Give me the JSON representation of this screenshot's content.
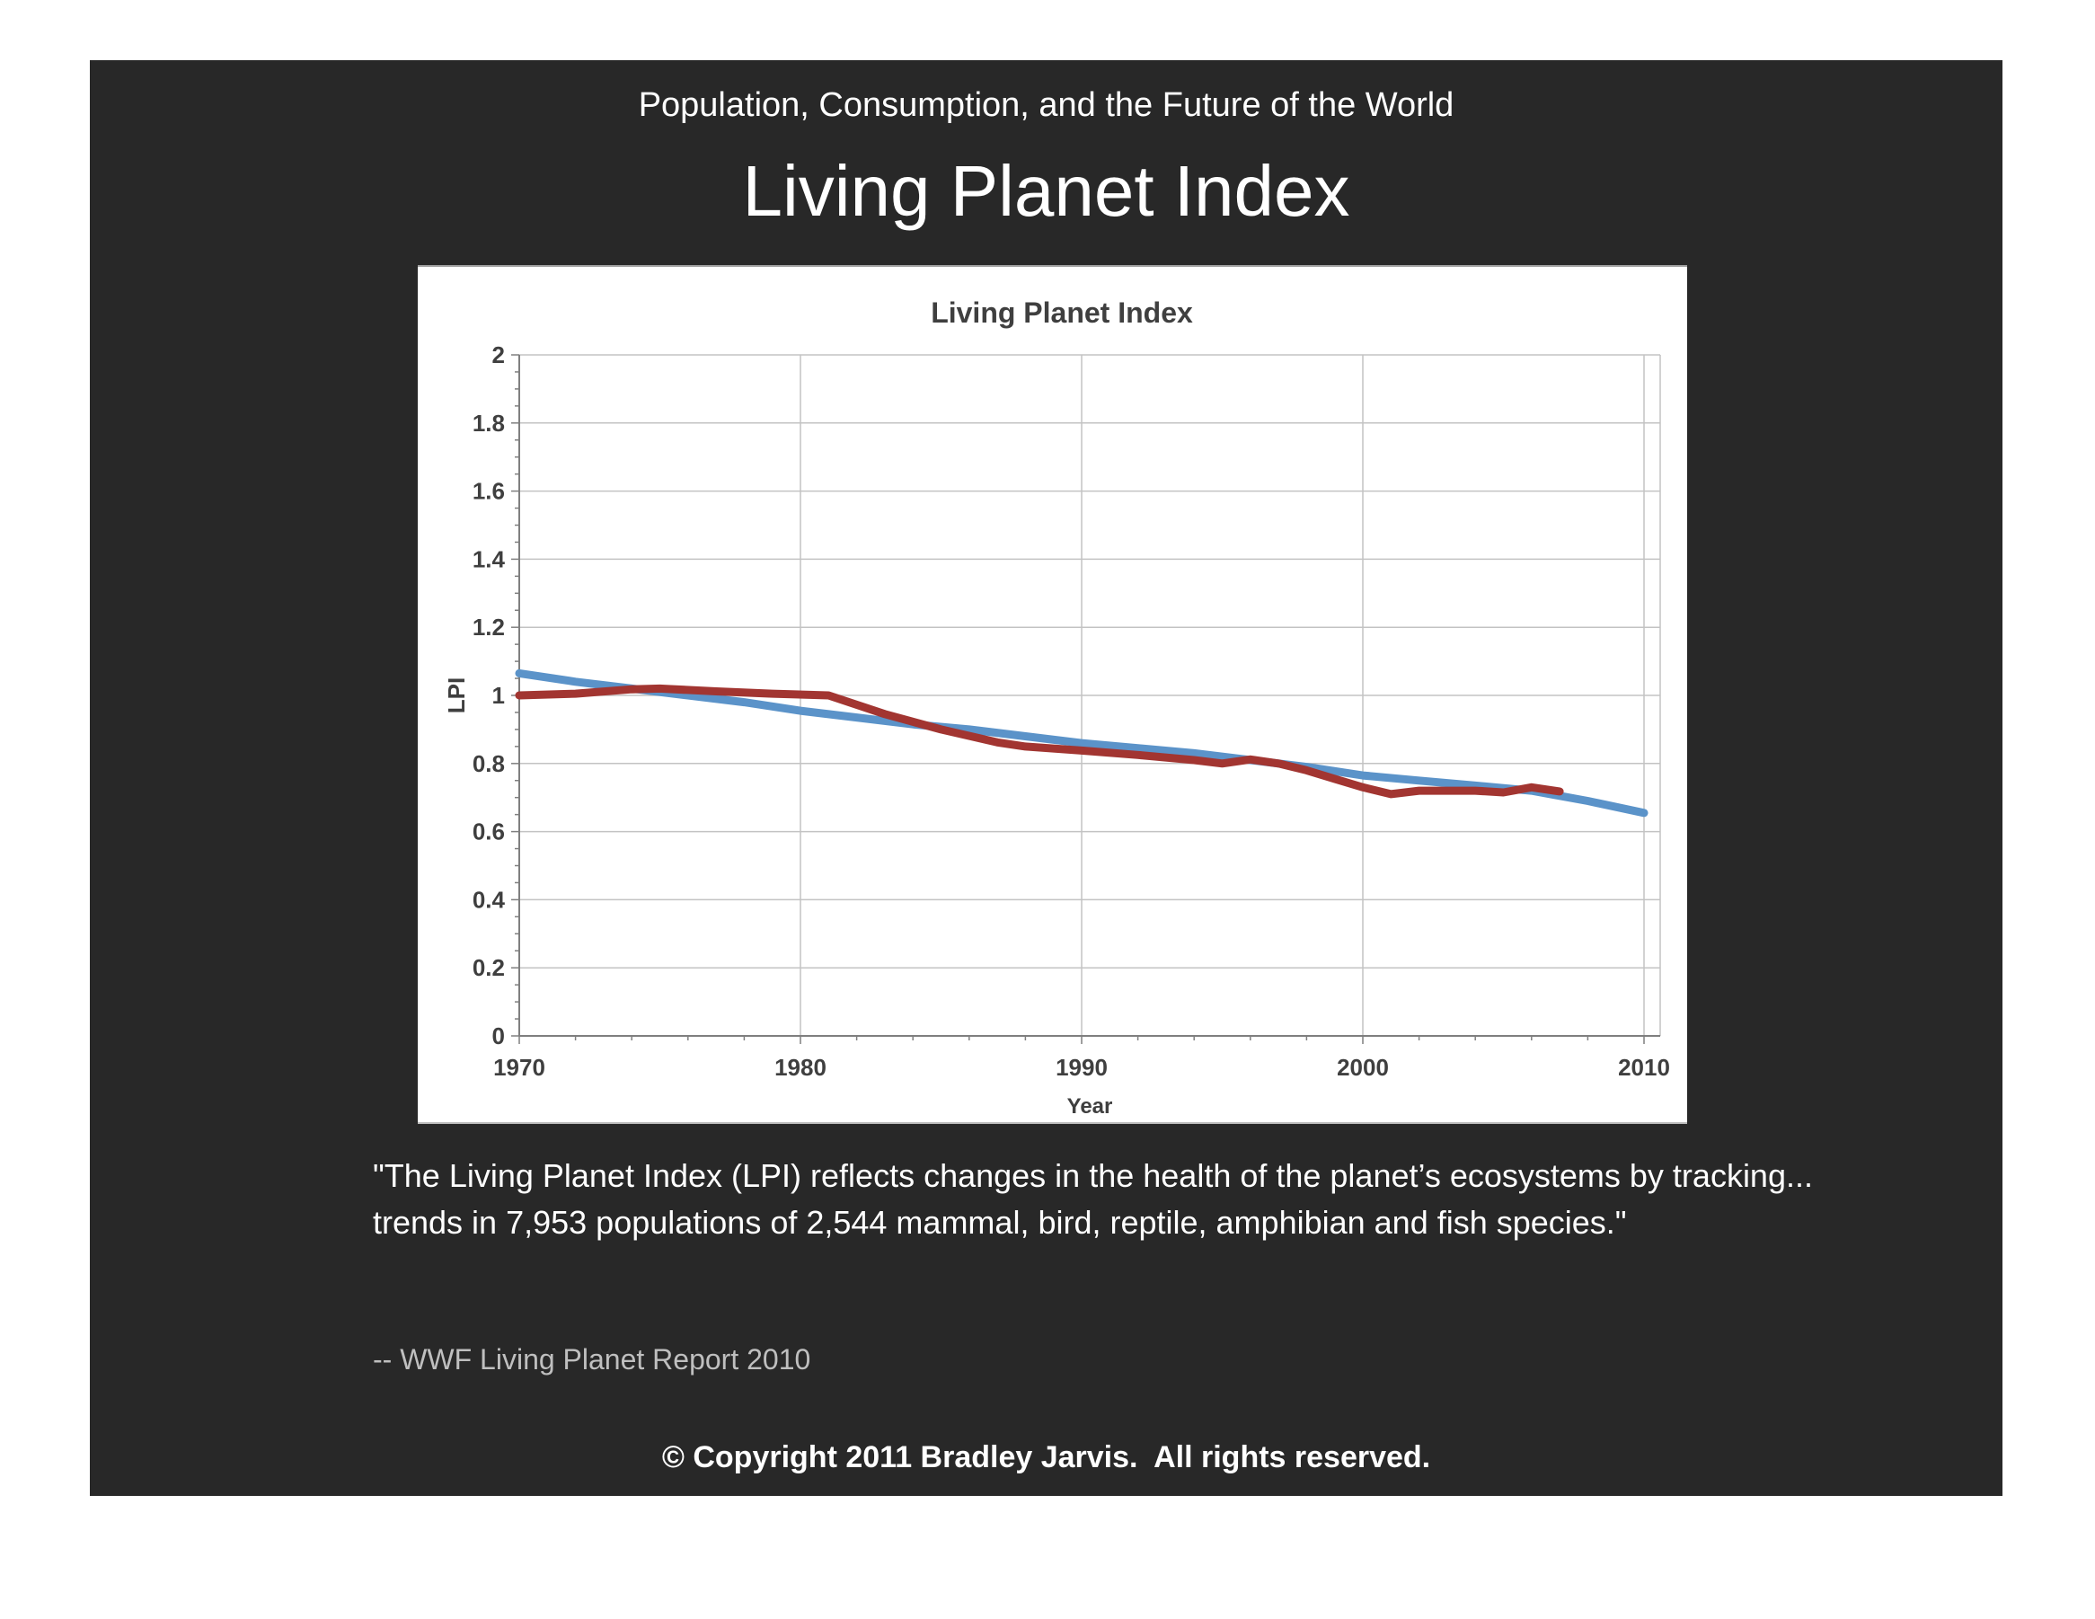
{
  "page": {
    "header": "Population, Consumption, and the Future of the World",
    "title": "Living Planet Index",
    "quote": "\"The Living Planet Index (LPI) reflects changes in the health of the planet’s ecosystems by tracking... trends in 7,953 populations of 2,544 mammal, bird, reptile, amphibian and fish species.\"",
    "attribution": "-- WWF Living Planet Report 2010",
    "copyright": "© Copyright 2011 Bradley Jarvis.  All rights reserved."
  },
  "colors": {
    "page_background": "#ffffff",
    "slide_background": "#282828",
    "chart_background": "#ffffff",
    "gridline": "#c3c3c3",
    "axis": "#7f7f7f",
    "tick_label": "#3f3f3f",
    "chart_title": "#3f3f3f",
    "attribution_text": "#bfbfbf",
    "blue_series": "#5b93c9",
    "red_series": "#a23531"
  },
  "chart_data": {
    "type": "line",
    "title": "Living Planet Index",
    "xlabel": "Year",
    "ylabel": "LPI",
    "xlim": [
      1970,
      2010
    ],
    "ylim": [
      0,
      2
    ],
    "x_major_ticks": [
      1970,
      1980,
      1990,
      2000,
      2010
    ],
    "x_minor_step": 2,
    "y_major_step": 0.2,
    "y_minor_step": 0.05,
    "y_tick_labels": [
      "0",
      "0.2",
      "0.4",
      "0.6",
      "0.8",
      "1",
      "1.2",
      "1.4",
      "1.6",
      "1.8",
      "2"
    ],
    "grid": true,
    "legend": "none",
    "series": [
      {
        "color_name": "blue",
        "color": "#5b93c9",
        "points": [
          [
            1970,
            1.065
          ],
          [
            1972,
            1.04
          ],
          [
            1974,
            1.02
          ],
          [
            1976,
            1.0
          ],
          [
            1978,
            0.98
          ],
          [
            1980,
            0.955
          ],
          [
            1982,
            0.935
          ],
          [
            1984,
            0.915
          ],
          [
            1986,
            0.9
          ],
          [
            1988,
            0.88
          ],
          [
            1990,
            0.86
          ],
          [
            1992,
            0.845
          ],
          [
            1994,
            0.83
          ],
          [
            1996,
            0.81
          ],
          [
            1998,
            0.79
          ],
          [
            2000,
            0.765
          ],
          [
            2002,
            0.75
          ],
          [
            2004,
            0.735
          ],
          [
            2006,
            0.72
          ],
          [
            2008,
            0.69
          ],
          [
            2010,
            0.655
          ]
        ]
      },
      {
        "color_name": "dark-red",
        "color": "#a23531",
        "points": [
          [
            1970,
            1.0
          ],
          [
            1972,
            1.005
          ],
          [
            1974,
            1.018
          ],
          [
            1975,
            1.02
          ],
          [
            1977,
            1.012
          ],
          [
            1979,
            1.005
          ],
          [
            1981,
            1.0
          ],
          [
            1983,
            0.945
          ],
          [
            1985,
            0.9
          ],
          [
            1987,
            0.862
          ],
          [
            1988,
            0.85
          ],
          [
            1990,
            0.838
          ],
          [
            1992,
            0.825
          ],
          [
            1994,
            0.81
          ],
          [
            1995,
            0.8
          ],
          [
            1996,
            0.812
          ],
          [
            1997,
            0.8
          ],
          [
            1998,
            0.78
          ],
          [
            1999,
            0.755
          ],
          [
            2000,
            0.73
          ],
          [
            2001,
            0.71
          ],
          [
            2002,
            0.72
          ],
          [
            2003,
            0.72
          ],
          [
            2004,
            0.72
          ],
          [
            2005,
            0.715
          ],
          [
            2006,
            0.73
          ],
          [
            2007,
            0.718
          ]
        ]
      }
    ]
  }
}
